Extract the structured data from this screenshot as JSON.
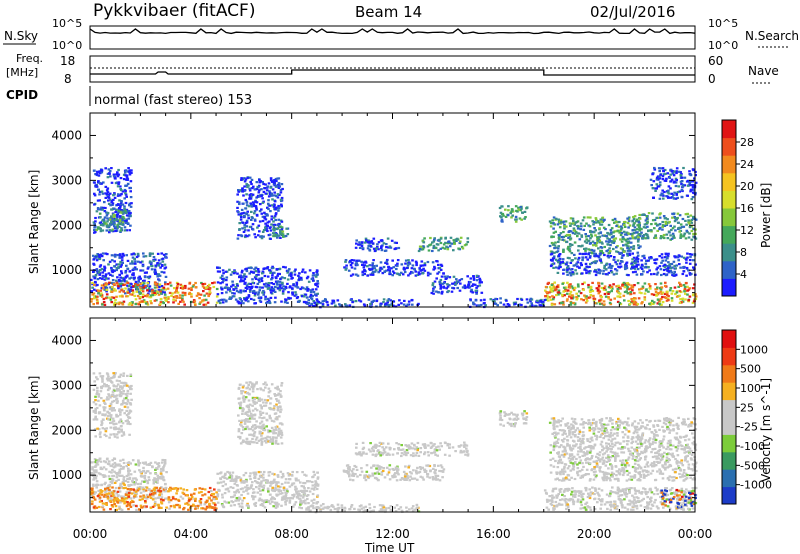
{
  "header": {
    "radar": "Pykkvibaer (fitACF)",
    "beam": "Beam 14",
    "date": "02/Jul/2016"
  },
  "top_panels": {
    "nsky_label": "N.Sky",
    "nsky_ticks": [
      "10^5",
      "10^0"
    ],
    "nsearch_label": "N.Search",
    "nsearch_ticks": [
      "10^5",
      "10^0"
    ],
    "freq_label_1": "Freq.",
    "freq_label_2": "[MHz]",
    "freq_ticks": [
      "18",
      "8"
    ],
    "nave_label": "Nave",
    "nave_ticks": [
      "60",
      "0"
    ],
    "cpid_label": "CPID",
    "cpid_text": "normal (fast stereo) 153"
  },
  "chart_data": [
    {
      "type": "heatmap",
      "name": "power",
      "ylabel": "Slant Range [km]",
      "ylim": [
        180,
        4500
      ],
      "yticks": [
        1000,
        2000,
        3000,
        4000
      ],
      "xlim_hours": [
        0,
        24
      ],
      "colorbar_label": "Power [dB]",
      "colorbar_ticks": [
        "4",
        "8",
        "12",
        "16",
        "20",
        "24",
        "28"
      ],
      "colorbar_colors": [
        "#1c1cff",
        "#2e63c8",
        "#3b8f8a",
        "#44a85a",
        "#86c83a",
        "#d7de2c",
        "#f5c320",
        "#f28a1e",
        "#ee4e1c",
        "#e01414"
      ],
      "scatter_regions": [
        {
          "t": [
            0.1,
            1.6
          ],
          "r": [
            1850,
            3300
          ],
          "level": "low"
        },
        {
          "t": [
            0.2,
            1.4
          ],
          "r": [
            1900,
            2400
          ],
          "level": "mid"
        },
        {
          "t": [
            5.8,
            7.6
          ],
          "r": [
            1700,
            3100
          ],
          "level": "low"
        },
        {
          "t": [
            7.2,
            7.8
          ],
          "r": [
            1750,
            2000
          ],
          "level": "mid"
        },
        {
          "t": [
            0.0,
            3.0
          ],
          "r": [
            500,
            1400
          ],
          "level": "low"
        },
        {
          "t": [
            0.0,
            5.0
          ],
          "r": [
            250,
            750
          ],
          "level": "high"
        },
        {
          "t": [
            5.0,
            9.0
          ],
          "r": [
            280,
            1100
          ],
          "level": "low"
        },
        {
          "t": [
            8.5,
            13.0
          ],
          "r": [
            200,
            380
          ],
          "level": "low"
        },
        {
          "t": [
            10.5,
            12.2
          ],
          "r": [
            1450,
            1750
          ],
          "level": "low"
        },
        {
          "t": [
            13.0,
            15.0
          ],
          "r": [
            1450,
            1750
          ],
          "level": "mid"
        },
        {
          "t": [
            10.0,
            14.0
          ],
          "r": [
            900,
            1250
          ],
          "level": "low"
        },
        {
          "t": [
            13.5,
            15.5
          ],
          "r": [
            500,
            900
          ],
          "level": "low"
        },
        {
          "t": [
            16.2,
            17.3
          ],
          "r": [
            2100,
            2450
          ],
          "level": "mid"
        },
        {
          "t": [
            18.2,
            21.8
          ],
          "r": [
            1400,
            2200
          ],
          "level": "mid"
        },
        {
          "t": [
            21.5,
            24.0
          ],
          "r": [
            1700,
            2300
          ],
          "level": "mid"
        },
        {
          "t": [
            22.2,
            24.0
          ],
          "r": [
            2600,
            3300
          ],
          "level": "low"
        },
        {
          "t": [
            18.2,
            24.0
          ],
          "r": [
            900,
            1400
          ],
          "level": "low"
        },
        {
          "t": [
            18.0,
            24.0
          ],
          "r": [
            250,
            750
          ],
          "level": "high"
        },
        {
          "t": [
            15.0,
            18.0
          ],
          "r": [
            200,
            400
          ],
          "level": "low"
        }
      ]
    },
    {
      "type": "heatmap",
      "name": "velocity",
      "ylabel": "Slant Range [km]",
      "ylim": [
        180,
        4500
      ],
      "yticks": [
        1000,
        2000,
        3000,
        4000
      ],
      "xlim_hours": [
        0,
        24
      ],
      "xticks": [
        "00:00",
        "04:00",
        "08:00",
        "12:00",
        "16:00",
        "20:00",
        "00:00"
      ],
      "xlabel": "Time UT",
      "colorbar_label": "Velocity [m s^-1]",
      "colorbar_ticks": [
        "1000",
        "500",
        "100",
        "25",
        "-25",
        "-100",
        "-500",
        "-1000"
      ],
      "colorbar_colors": [
        "#1c3cc8",
        "#2a6fb0",
        "#3a9a60",
        "#7ccc3a",
        "#c8c8c8",
        "#c8c8c8",
        "#f5b020",
        "#f07a18",
        "#ee3a14",
        "#e00f0f"
      ],
      "scatter_regions": [
        {
          "t": [
            0.1,
            1.6
          ],
          "r": [
            1850,
            3300
          ],
          "level": "grey"
        },
        {
          "t": [
            5.8,
            7.6
          ],
          "r": [
            1700,
            3100
          ],
          "level": "grey"
        },
        {
          "t": [
            0.0,
            3.0
          ],
          "r": [
            500,
            1400
          ],
          "level": "grey"
        },
        {
          "t": [
            0.0,
            5.0
          ],
          "r": [
            250,
            750
          ],
          "level": "orange"
        },
        {
          "t": [
            5.0,
            9.0
          ],
          "r": [
            280,
            1100
          ],
          "level": "grey"
        },
        {
          "t": [
            8.5,
            13.0
          ],
          "r": [
            200,
            380
          ],
          "level": "grey"
        },
        {
          "t": [
            10.5,
            15.0
          ],
          "r": [
            1450,
            1750
          ],
          "level": "grey"
        },
        {
          "t": [
            10.0,
            14.0
          ],
          "r": [
            900,
            1250
          ],
          "level": "grey"
        },
        {
          "t": [
            16.2,
            17.3
          ],
          "r": [
            2100,
            2450
          ],
          "level": "grey"
        },
        {
          "t": [
            18.2,
            24.0
          ],
          "r": [
            1400,
            2300
          ],
          "level": "grey"
        },
        {
          "t": [
            18.2,
            24.0
          ],
          "r": [
            900,
            1400
          ],
          "level": "grey"
        },
        {
          "t": [
            18.0,
            24.0
          ],
          "r": [
            250,
            750
          ],
          "level": "grey"
        },
        {
          "t": [
            22.5,
            24.0
          ],
          "r": [
            300,
            700
          ],
          "level": "mixed"
        }
      ]
    }
  ]
}
